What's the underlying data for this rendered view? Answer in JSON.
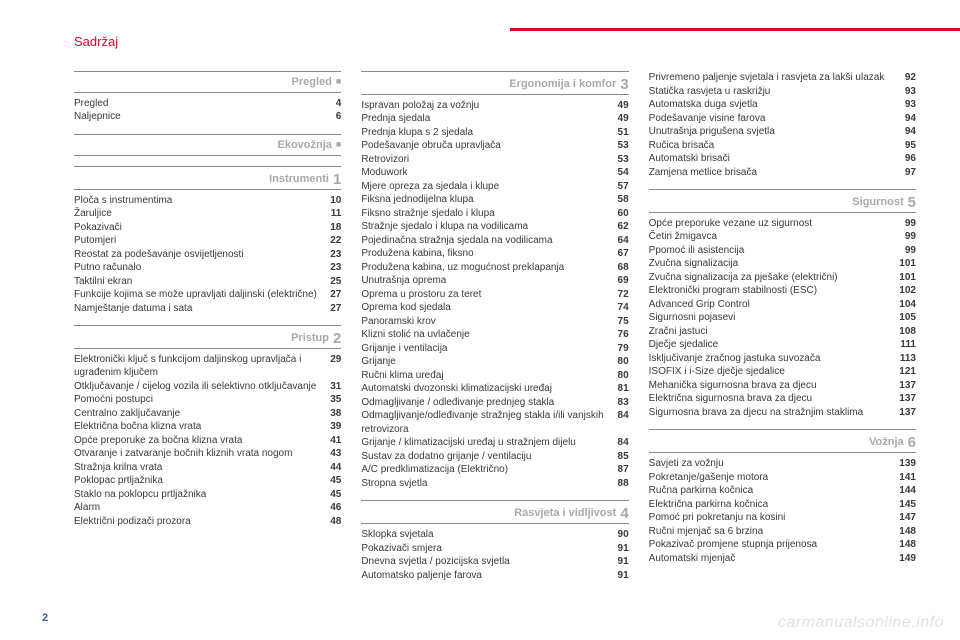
{
  "header": {
    "title": "Sadržaj"
  },
  "page_number": "2",
  "watermark": "carmanualsonline.info",
  "columns": [
    {
      "groups": [
        {
          "title": "Pregled",
          "marker": "■",
          "marker_class": "square",
          "first": true,
          "rows": [
            {
              "label": "Pregled",
              "page": "4"
            },
            {
              "label": "Naljepnice",
              "page": "6"
            }
          ]
        },
        {
          "title": "Ekovožnja",
          "marker": "■",
          "marker_class": "square",
          "rows": []
        },
        {
          "title": "Instrumenti",
          "marker": "1",
          "rows": [
            {
              "label": "Ploča s instrumentima",
              "page": "10"
            },
            {
              "label": "Žaruljice",
              "page": "11"
            },
            {
              "label": "Pokazivači",
              "page": "18"
            },
            {
              "label": "Putomjeri",
              "page": "22"
            },
            {
              "label": "Reostat za podešavanje osvijetljenosti",
              "page": "23"
            },
            {
              "label": "Putno računalo",
              "page": "23"
            },
            {
              "label": "Taktilni ekran",
              "page": "25"
            },
            {
              "label": "Funkcije kojima se može upravljati daljinski (električne)",
              "page": "27"
            },
            {
              "label": "Namještanje datuma i sata",
              "page": "27"
            }
          ]
        },
        {
          "title": "Pristup",
          "marker": "2",
          "rows": [
            {
              "label": "Elektronički ključ s funkcijom daljinskog upravljača i ugrađenim ključem",
              "page": "29"
            },
            {
              "label": "Otključavanje / cijelog vozila ili selektivno otključavanje",
              "page": "31"
            },
            {
              "label": "Pomoćni postupci",
              "page": "35"
            },
            {
              "label": "Centralno zaključavanje",
              "page": "38"
            },
            {
              "label": "Električna bočna klizna vrata",
              "page": "39"
            },
            {
              "label": "Opće preporuke za bočna klizna vrata",
              "page": "41"
            },
            {
              "label": "Otvaranje i zatvaranje bočnih kliznih vrata nogom",
              "page": "43"
            },
            {
              "label": "Stražnja krilna vrata",
              "page": "44"
            },
            {
              "label": "Poklopac prtljažnika",
              "page": "45"
            },
            {
              "label": "Staklo na poklopcu prtljažnika",
              "page": "45"
            },
            {
              "label": "Alarm",
              "page": "46"
            },
            {
              "label": "Električni podizači prozora",
              "page": "48"
            }
          ]
        }
      ]
    },
    {
      "groups": [
        {
          "title": "Ergonomija i komfor",
          "marker": "3",
          "first": true,
          "rows": [
            {
              "label": "Ispravan položaj za vožnju",
              "page": "49"
            },
            {
              "label": "Prednja sjedala",
              "page": "49"
            },
            {
              "label": "Prednja klupa s 2 sjedala",
              "page": "51"
            },
            {
              "label": "Podešavanje obruča upravljača",
              "page": "53"
            },
            {
              "label": "Retrovizori",
              "page": "53"
            },
            {
              "label": "Moduwork",
              "page": "54"
            },
            {
              "label": "Mjere opreza za sjedala i klupe",
              "page": "57"
            },
            {
              "label": "Fiksna jednodijelna klupa",
              "page": "58"
            },
            {
              "label": "Fiksno stražnje sjedalo i klupa",
              "page": "60"
            },
            {
              "label": "Stražnje sjedalo i klupa na vodilicama",
              "page": "62"
            },
            {
              "label": "Pojedinačna stražnja sjedala na vodilicama",
              "page": "64"
            },
            {
              "label": "Produžena kabina, fiksno",
              "page": "67"
            },
            {
              "label": "Produžena kabina, uz mogućnost preklapanja",
              "page": "68"
            },
            {
              "label": "Unutrašnja oprema",
              "page": "69"
            },
            {
              "label": "Oprema u prostoru za teret",
              "page": "72"
            },
            {
              "label": "Oprema kod sjedala",
              "page": "74"
            },
            {
              "label": "Panoramski krov",
              "page": "75"
            },
            {
              "label": "Klizni stolić na uvlačenje",
              "page": "76"
            },
            {
              "label": "Grijanje i ventilacija",
              "page": "79"
            },
            {
              "label": "Grijanje",
              "page": "80"
            },
            {
              "label": "Ručni klima uređaj",
              "page": "80"
            },
            {
              "label": "Automatski dvozonski klimatizacijski uređaj",
              "page": "81"
            },
            {
              "label": "Odmagljivanje / odleđivanje prednjeg stakla",
              "page": "83"
            },
            {
              "label": "Odmagljivanje/odleđivanje stražnjeg stakla i/ili vanjskih retrovizora",
              "page": "84"
            },
            {
              "label": "Grijanje / klimatizacijski uređaj u stražnjem dijelu",
              "page": "84"
            },
            {
              "label": "Sustav za dodatno grijanje / ventilaciju",
              "page": "85"
            },
            {
              "label": "A/C predklimatizacija (Električno)",
              "page": "87"
            },
            {
              "label": "Stropna svjetla",
              "page": "88"
            }
          ]
        },
        {
          "title": "Rasvjeta i vidljivost",
          "marker": "4",
          "rows": [
            {
              "label": "Sklopka svjetala",
              "page": "90"
            },
            {
              "label": "Pokazivači smjera",
              "page": "91"
            },
            {
              "label": "Dnevna svjetla / pozicijska svjetla",
              "page": "91"
            },
            {
              "label": "Automatsko paljenje farova",
              "page": "91"
            }
          ]
        }
      ]
    },
    {
      "groups": [
        {
          "plain": true,
          "rows": [
            {
              "label": "Privremeno paljenje svjetala i rasvjeta za lakši ulazak",
              "page": "92"
            },
            {
              "label": "Statička rasvjeta u raskrižju",
              "page": "93"
            },
            {
              "label": "Automatska duga svjetla",
              "page": "93"
            },
            {
              "label": "Podešavanje visine farova",
              "page": "94"
            },
            {
              "label": "Unutrašnja prigušena svjetla",
              "page": "94"
            },
            {
              "label": "Ručica brisača",
              "page": "95"
            },
            {
              "label": "Automatski brisači",
              "page": "96"
            },
            {
              "label": "Zamjena metlice brisača",
              "page": "97"
            }
          ]
        },
        {
          "title": "Sigurnost",
          "marker": "5",
          "rows": [
            {
              "label": "Opće preporuke vezane uz sigurnost",
              "page": "99"
            },
            {
              "label": "Četiri žmigavca",
              "page": "99"
            },
            {
              "label": "Ppomoć ili asistencija",
              "page": "99"
            },
            {
              "label": "Zvučna signalizacija",
              "page": "101"
            },
            {
              "label": "Zvučna signalizacija za pješake (električni)",
              "page": "101"
            },
            {
              "label": "Elektronički program stabilnosti (ESC)",
              "page": "102"
            },
            {
              "label": "Advanced Grip Control",
              "page": "104"
            },
            {
              "label": "Sigurnosni pojasevi",
              "page": "105"
            },
            {
              "label": "Zračni jastuci",
              "page": "108"
            },
            {
              "label": "Dječje sjedalice",
              "page": "111"
            },
            {
              "label": "Isključivanje zračnog jastuka suvozača",
              "page": "113"
            },
            {
              "label": "ISOFIX i i-Size dječje sjedalice",
              "page": "121"
            },
            {
              "label": "Mehanička sigurnosna brava za djecu",
              "page": "137"
            },
            {
              "label": "Električna sigurnosna brava za djecu",
              "page": "137"
            },
            {
              "label": "Sigurnosna brava za djecu na stražnjim staklima",
              "page": "137"
            }
          ]
        },
        {
          "title": "Vožnja",
          "marker": "6",
          "rows": [
            {
              "label": "Savjeti za vožnju",
              "page": "139"
            },
            {
              "label": "Pokretanje/gašenje motora",
              "page": "141"
            },
            {
              "label": "Ručna parkirna kočnica",
              "page": "144"
            },
            {
              "label": "Električna parkirna kočnica",
              "page": "145"
            },
            {
              "label": "Pomoć pri pokretanju na kosini",
              "page": "147"
            },
            {
              "label": "Ručni mjenjač sa 6 brzina",
              "page": "148"
            },
            {
              "label": "Pokazivač promjene stupnja prijenosa",
              "page": "148"
            },
            {
              "label": "Automatski mjenjač",
              "page": "149"
            }
          ]
        }
      ]
    }
  ]
}
